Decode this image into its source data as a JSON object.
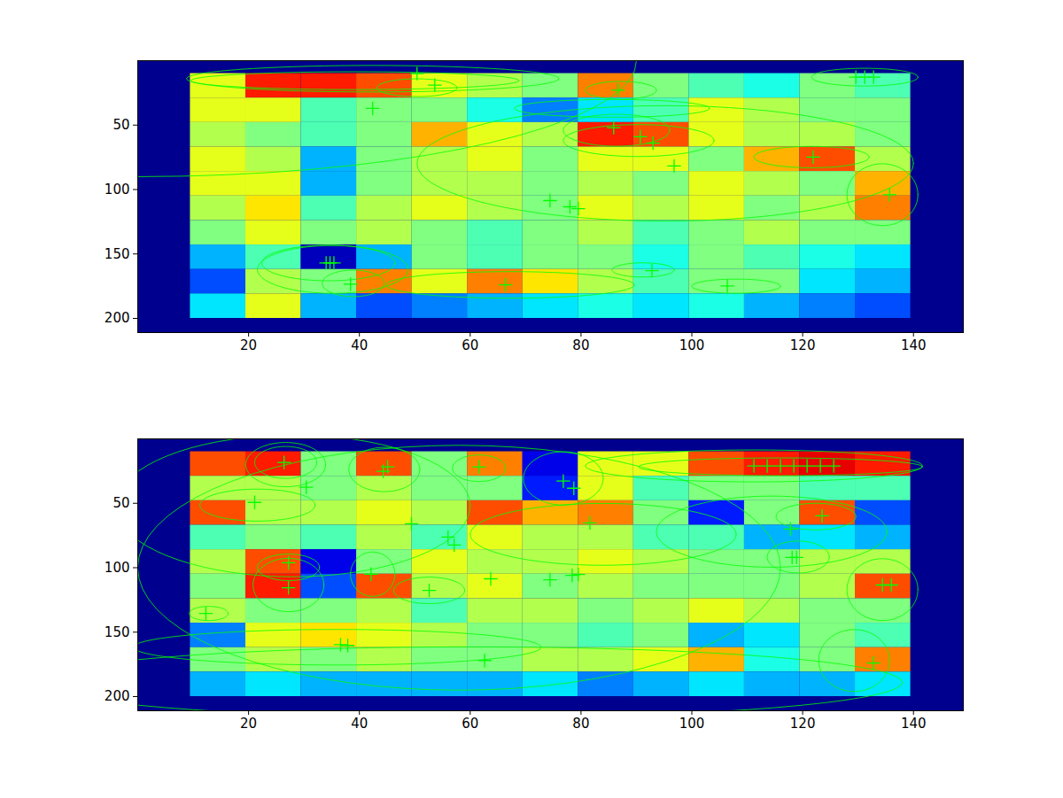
{
  "chart_data": [
    {
      "type": "heatmap",
      "xlim": [
        0,
        149
      ],
      "ylim": [
        0,
        211
      ],
      "xticks": [
        20,
        40,
        60,
        80,
        100,
        120,
        140
      ],
      "yticks": [
        50,
        100,
        150,
        200
      ],
      "clim": [
        0,
        1
      ],
      "x_edges": [
        9.5,
        19.5,
        29.5,
        39.5,
        49.5,
        59.5,
        69.5,
        79.5,
        89.5,
        99.5,
        109.5,
        119.5,
        129.5,
        139.5
      ],
      "y_edges": [
        10,
        29,
        48,
        67,
        86,
        105,
        124,
        143,
        162,
        181,
        200
      ],
      "cells": [
        [
          0.6,
          0.85,
          0.85,
          0.8,
          0.6,
          0.55,
          0.5,
          0.75,
          0.5,
          0.45,
          0.4,
          0.5,
          0.45
        ],
        [
          0.6,
          0.6,
          0.45,
          0.5,
          0.5,
          0.4,
          0.25,
          0.35,
          0.45,
          0.6,
          0.55,
          0.5,
          0.5
        ],
        [
          0.55,
          0.5,
          0.45,
          0.5,
          0.7,
          0.6,
          0.55,
          0.85,
          0.8,
          0.6,
          0.55,
          0.55,
          0.5
        ],
        [
          0.6,
          0.55,
          0.3,
          0.5,
          0.55,
          0.6,
          0.5,
          0.6,
          0.6,
          0.5,
          0.7,
          0.8,
          0.55
        ],
        [
          0.6,
          0.6,
          0.3,
          0.5,
          0.55,
          0.55,
          0.5,
          0.55,
          0.5,
          0.6,
          0.55,
          0.5,
          0.7
        ],
        [
          0.55,
          0.65,
          0.45,
          0.55,
          0.6,
          0.55,
          0.5,
          0.6,
          0.55,
          0.6,
          0.5,
          0.55,
          0.75
        ],
        [
          0.5,
          0.6,
          0.5,
          0.55,
          0.5,
          0.45,
          0.5,
          0.55,
          0.45,
          0.5,
          0.55,
          0.5,
          0.5
        ],
        [
          0.3,
          0.45,
          0.05,
          0.3,
          0.5,
          0.45,
          0.5,
          0.5,
          0.4,
          0.5,
          0.45,
          0.4,
          0.35
        ],
        [
          0.2,
          0.55,
          0.5,
          0.75,
          0.6,
          0.75,
          0.65,
          0.55,
          0.45,
          0.5,
          0.5,
          0.35,
          0.3
        ],
        [
          0.35,
          0.6,
          0.3,
          0.2,
          0.25,
          0.3,
          0.35,
          0.4,
          0.35,
          0.4,
          0.3,
          0.25,
          0.2
        ]
      ],
      "ellipses": [
        {
          "cx": 95.2,
          "cy": 79.7,
          "rx": 44.8,
          "ry": 44.8
        },
        {
          "cx": 42.4,
          "cy": 14,
          "rx": 33.6,
          "ry": 10.3
        },
        {
          "cx": 39.2,
          "cy": 15.5,
          "rx": 29.6,
          "ry": 6.9
        },
        {
          "cx": 50.4,
          "cy": 21,
          "rx": 7.2,
          "ry": 6.9
        },
        {
          "cx": 87.2,
          "cy": 23,
          "rx": 6.4,
          "ry": 6.9
        },
        {
          "cx": 85.6,
          "cy": 37,
          "rx": 17.6,
          "ry": 6.9
        },
        {
          "cx": 86.4,
          "cy": 54,
          "rx": 9.6,
          "ry": 12.4
        },
        {
          "cx": 90.4,
          "cy": 62,
          "rx": 13.6,
          "ry": 12.4
        },
        {
          "cx": 121.6,
          "cy": 74.8,
          "rx": 10.4,
          "ry": 8.3
        },
        {
          "cx": 134.4,
          "cy": 104,
          "rx": 6.4,
          "ry": 24
        },
        {
          "cx": 131.2,
          "cy": 12.8,
          "rx": 9.6,
          "ry": 6.9
        },
        {
          "cx": 34.4,
          "cy": 157,
          "rx": 12,
          "ry": 13.8
        },
        {
          "cx": 35.2,
          "cy": 162,
          "rx": 13.6,
          "ry": 18.6
        },
        {
          "cx": 38.9,
          "cy": 172.8,
          "rx": 5.6,
          "ry": 10.3
        },
        {
          "cx": 67.2,
          "cy": 174,
          "rx": 22.4,
          "ry": 10.3
        },
        {
          "cx": 91.2,
          "cy": 162.4,
          "rx": 5.6,
          "ry": 5.5
        },
        {
          "cx": 108,
          "cy": 175,
          "rx": 8,
          "ry": 5.5
        },
        {
          "cx": 0,
          "cy": 0,
          "rx": 90,
          "ry": 90
        }
      ],
      "points": {
        "x": [
          42.4,
          34,
          34.7,
          35.4,
          38.4,
          66.4,
          92.8,
          106.4,
          85.9,
          86.7,
          74.4,
          78,
          79.5,
          93,
          90.7,
          96.8,
          121.9,
          135.7,
          129.6,
          131.2,
          132.8,
          50.4,
          53.6
        ],
        "y": [
          37,
          157,
          157,
          157,
          173.5,
          174,
          163,
          174.8,
          52,
          23,
          108.6,
          113.4,
          114.8,
          64,
          59,
          81.7,
          74.8,
          104,
          12.8,
          12.8,
          12.8,
          10,
          19
        ]
      }
    },
    {
      "type": "heatmap",
      "xlim": [
        0,
        149
      ],
      "ylim": [
        0,
        211
      ],
      "xticks": [
        20,
        40,
        60,
        80,
        100,
        120,
        140
      ],
      "yticks": [
        50,
        100,
        150,
        200
      ],
      "clim": [
        0,
        1
      ],
      "x_edges": [
        9.5,
        19.5,
        29.5,
        39.5,
        49.5,
        59.5,
        69.5,
        79.5,
        89.5,
        99.5,
        109.5,
        119.5,
        129.5,
        139.5
      ],
      "y_edges": [
        10,
        29,
        48,
        67,
        86,
        105,
        124,
        143,
        162,
        181,
        200
      ],
      "cells": [
        [
          0.8,
          0.85,
          0.5,
          0.8,
          0.5,
          0.75,
          0.1,
          0.6,
          0.6,
          0.8,
          0.85,
          0.9,
          0.85
        ],
        [
          0.55,
          0.55,
          0.5,
          0.55,
          0.5,
          0.5,
          0.15,
          0.6,
          0.45,
          0.5,
          0.5,
          0.45,
          0.45
        ],
        [
          0.8,
          0.55,
          0.55,
          0.6,
          0.55,
          0.8,
          0.7,
          0.75,
          0.5,
          0.15,
          0.5,
          0.8,
          0.2
        ],
        [
          0.45,
          0.5,
          0.45,
          0.55,
          0.45,
          0.6,
          0.55,
          0.55,
          0.45,
          0.45,
          0.3,
          0.35,
          0.3
        ],
        [
          0.55,
          0.8,
          0.1,
          0.5,
          0.6,
          0.55,
          0.55,
          0.6,
          0.55,
          0.5,
          0.5,
          0.55,
          0.55
        ],
        [
          0.5,
          0.85,
          0.2,
          0.8,
          0.55,
          0.6,
          0.5,
          0.55,
          0.5,
          0.5,
          0.5,
          0.55,
          0.8
        ],
        [
          0.55,
          0.5,
          0.5,
          0.55,
          0.45,
          0.55,
          0.55,
          0.5,
          0.55,
          0.6,
          0.55,
          0.5,
          0.5
        ],
        [
          0.25,
          0.6,
          0.65,
          0.6,
          0.55,
          0.5,
          0.5,
          0.45,
          0.5,
          0.3,
          0.35,
          0.5,
          0.45
        ],
        [
          0.5,
          0.55,
          0.5,
          0.55,
          0.5,
          0.5,
          0.55,
          0.55,
          0.6,
          0.7,
          0.4,
          0.5,
          0.75
        ],
        [
          0.3,
          0.35,
          0.3,
          0.3,
          0.3,
          0.3,
          0.35,
          0.25,
          0.3,
          0.35,
          0.3,
          0.3,
          0.35
        ]
      ],
      "ellipses": [
        {
          "cx": 26.7,
          "cy": 18.3,
          "rx": 5.6,
          "ry": 12.4
        },
        {
          "cx": 26.7,
          "cy": 20,
          "rx": 7.2,
          "ry": 17.2
        },
        {
          "cx": 44.5,
          "cy": 23.8,
          "rx": 6.4,
          "ry": 17.2
        },
        {
          "cx": 61.6,
          "cy": 22.8,
          "rx": 4.8,
          "ry": 10.3
        },
        {
          "cx": 76.8,
          "cy": 30.7,
          "rx": 7.2,
          "ry": 20.7
        },
        {
          "cx": 111.2,
          "cy": 21,
          "rx": 30.4,
          "ry": 12.4
        },
        {
          "cx": 116,
          "cy": 21.7,
          "rx": 25.6,
          "ry": 6.9
        },
        {
          "cx": 21.6,
          "cy": 51.4,
          "rx": 10.4,
          "ry": 12.4
        },
        {
          "cx": 122.4,
          "cy": 60.3,
          "rx": 7.2,
          "ry": 10.3
        },
        {
          "cx": 84,
          "cy": 74.1,
          "rx": 24,
          "ry": 24
        },
        {
          "cx": 27.2,
          "cy": 99.7,
          "rx": 5.6,
          "ry": 10.3
        },
        {
          "cx": 27.2,
          "cy": 113.4,
          "rx": 6.4,
          "ry": 20.7
        },
        {
          "cx": 42.4,
          "cy": 105,
          "rx": 4,
          "ry": 17.2
        },
        {
          "cx": 52.6,
          "cy": 117.6,
          "rx": 6.4,
          "ry": 10.3
        },
        {
          "cx": 119.2,
          "cy": 91.7,
          "rx": 5.6,
          "ry": 12.4
        },
        {
          "cx": 134.4,
          "cy": 117,
          "rx": 6.4,
          "ry": 24
        },
        {
          "cx": 129.3,
          "cy": 172,
          "rx": 6.4,
          "ry": 24
        },
        {
          "cx": 12.8,
          "cy": 135.5,
          "rx": 3.5,
          "ry": 5.5
        },
        {
          "cx": 36,
          "cy": 161.7,
          "rx": 36.8,
          "ry": 13.8
        },
        {
          "cx": 60,
          "cy": 189,
          "rx": 78,
          "ry": 27.6
        },
        {
          "cx": 28,
          "cy": 52,
          "rx": 32,
          "ry": 55
        },
        {
          "cx": 114.4,
          "cy": 72,
          "rx": 20.8,
          "ry": 27.6
        },
        {
          "cx": 58,
          "cy": 100,
          "rx": 58,
          "ry": 95
        }
      ],
      "points": {
        "x": [
          26.4,
          45.1,
          44.3,
          61.6,
          76.8,
          78.7,
          30.4,
          21.1,
          49.4,
          81.6,
          56,
          57.1,
          27.2,
          27.2,
          42.1,
          52.6,
          63.7,
          74.4,
          78.4,
          79.5,
          12.3,
          36.6,
          37.9,
          62.6,
          117.8,
          118.1,
          118.9,
          123.5,
          132.8,
          134.4,
          136,
          111.2,
          113.6,
          116,
          118.4,
          120.8,
          123.2,
          125.6
        ],
        "y": [
          18.3,
          21.7,
          25.2,
          21.7,
          32.8,
          38.3,
          37.6,
          49.3,
          65.9,
          65.2,
          76.2,
          82.4,
          96.2,
          115.5,
          105,
          117.6,
          108.6,
          109.3,
          105.9,
          105.2,
          135.5,
          159.7,
          160.3,
          172,
          70,
          92,
          92,
          59.7,
          174,
          113.4,
          113.4,
          21,
          21,
          21,
          21,
          21,
          21,
          21
        ]
      }
    }
  ]
}
